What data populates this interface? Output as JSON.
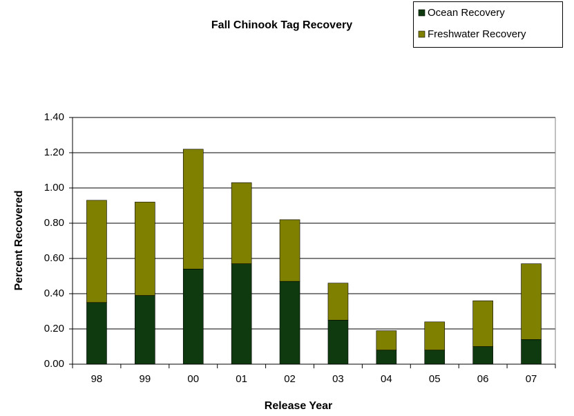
{
  "chart_data": {
    "type": "bar",
    "stacked": true,
    "title": "Fall Chinook Tag Recovery",
    "x_label": "Release Year",
    "y_label": "Percent Recovered",
    "categories": [
      "98",
      "99",
      "00",
      "01",
      "02",
      "03",
      "04",
      "05",
      "06",
      "07"
    ],
    "series": [
      {
        "name": "Ocean Recovery",
        "color": "#0f3a0f",
        "values": [
          0.35,
          0.39,
          0.54,
          0.57,
          0.47,
          0.25,
          0.08,
          0.08,
          0.1,
          0.14
        ]
      },
      {
        "name": "Freshwater Recovery",
        "color": "#808000",
        "values": [
          0.58,
          0.53,
          0.68,
          0.46,
          0.35,
          0.21,
          0.11,
          0.16,
          0.26,
          0.43
        ]
      }
    ],
    "ylim": [
      0,
      1.4
    ],
    "yticks": [
      {
        "value": 0,
        "label": "0.00"
      },
      {
        "value": 0.2,
        "label": "0.20"
      },
      {
        "value": 0.4,
        "label": "0.40"
      },
      {
        "value": 0.6,
        "label": "0.60"
      },
      {
        "value": 0.8,
        "label": "0.80"
      },
      {
        "value": 1,
        "label": "1.00"
      },
      {
        "value": 1.2,
        "label": "1.20"
      },
      {
        "value": 1.4,
        "label": "1.40"
      }
    ],
    "grid": true,
    "legend": "top-right"
  }
}
